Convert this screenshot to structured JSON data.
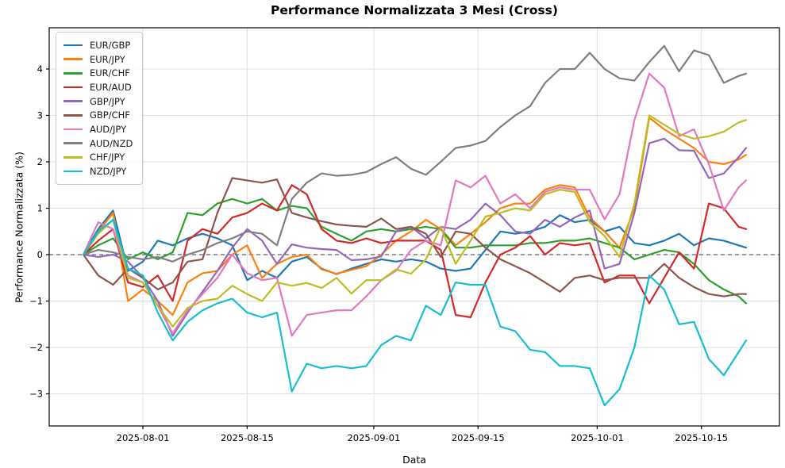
{
  "chart_data": {
    "type": "line",
    "title": "Performance Normalizzata 3 Mesi (Cross)",
    "xlabel": "Data",
    "ylabel": "Performance Normalizzata (%)",
    "grid": true,
    "zero_line_dashed": true,
    "legend_position": "upper left",
    "ylim": [
      -3.7,
      4.9
    ],
    "y_ticks": [
      -3,
      -2,
      -1,
      0,
      1,
      2,
      3,
      4
    ],
    "x_tick_labels": [
      "2025-08-01",
      "2025-08-15",
      "2025-09-01",
      "2025-09-15",
      "2025-10-01",
      "2025-10-15"
    ],
    "x": [
      "2025-07-24",
      "2025-07-26",
      "2025-07-28",
      "2025-07-30",
      "2025-08-01",
      "2025-08-03",
      "2025-08-05",
      "2025-08-07",
      "2025-08-09",
      "2025-08-11",
      "2025-08-13",
      "2025-08-15",
      "2025-08-17",
      "2025-08-19",
      "2025-08-21",
      "2025-08-23",
      "2025-08-25",
      "2025-08-27",
      "2025-08-29",
      "2025-08-31",
      "2025-09-02",
      "2025-09-04",
      "2025-09-06",
      "2025-09-08",
      "2025-09-10",
      "2025-09-12",
      "2025-09-14",
      "2025-09-16",
      "2025-09-18",
      "2025-09-20",
      "2025-09-22",
      "2025-09-24",
      "2025-09-26",
      "2025-09-28",
      "2025-09-30",
      "2025-10-02",
      "2025-10-04",
      "2025-10-06",
      "2025-10-08",
      "2025-10-10",
      "2025-10-12",
      "2025-10-14",
      "2025-10-16",
      "2025-10-18",
      "2025-10-20",
      "2025-10-21"
    ],
    "series": [
      {
        "name": "EUR/GBP",
        "color": "#1f77b4",
        "values": [
          0,
          0.55,
          0.95,
          -0.35,
          -0.15,
          0.3,
          0.2,
          0.35,
          0.45,
          0.35,
          0.2,
          -0.55,
          -0.35,
          -0.5,
          -0.15,
          -0.05,
          -0.3,
          -0.42,
          -0.3,
          -0.2,
          -0.1,
          -0.15,
          -0.1,
          -0.15,
          -0.3,
          -0.35,
          -0.3,
          0.1,
          0.5,
          0.45,
          0.5,
          0.6,
          0.85,
          0.7,
          0.75,
          0.5,
          0.6,
          0.25,
          0.2,
          0.3,
          0.45,
          0.2,
          0.35,
          0.3,
          0.2,
          0.15
        ]
      },
      {
        "name": "EUR/JPY",
        "color": "#ff7f0e",
        "values": [
          0,
          0.5,
          0.9,
          -1.0,
          -0.75,
          -1.0,
          -1.3,
          -0.6,
          -0.4,
          -0.35,
          0.0,
          0.2,
          -0.5,
          -0.2,
          -0.05,
          0.0,
          -0.32,
          -0.41,
          -0.33,
          -0.25,
          0.0,
          0.3,
          0.5,
          0.75,
          0.55,
          0.2,
          0.45,
          0.7,
          1.0,
          1.1,
          1.1,
          1.4,
          1.5,
          1.45,
          0.8,
          0.5,
          0.15,
          1.0,
          2.95,
          2.7,
          2.5,
          2.3,
          2.0,
          1.95,
          2.05,
          2.15
        ]
      },
      {
        "name": "EUR/CHF",
        "color": "#2ca02c",
        "values": [
          0,
          0.2,
          0.35,
          -0.1,
          0.05,
          -0.1,
          0.05,
          0.9,
          0.85,
          1.1,
          1.2,
          1.1,
          1.2,
          0.95,
          1.05,
          1.0,
          0.6,
          0.45,
          0.3,
          0.5,
          0.55,
          0.5,
          0.55,
          0.6,
          0.55,
          0.15,
          0.15,
          0.2,
          0.2,
          0.2,
          0.25,
          0.25,
          0.3,
          0.3,
          0.35,
          0.25,
          0.15,
          -0.1,
          0.0,
          0.1,
          0.05,
          -0.2,
          -0.55,
          -0.75,
          -0.9,
          -1.05
        ]
      },
      {
        "name": "EUR/AUD",
        "color": "#d62728",
        "values": [
          0,
          0.3,
          0.55,
          -0.6,
          -0.7,
          -0.45,
          -1.0,
          0.3,
          0.55,
          0.45,
          0.8,
          0.9,
          1.1,
          0.95,
          1.5,
          1.3,
          0.55,
          0.3,
          0.25,
          0.35,
          0.25,
          0.3,
          0.3,
          0.3,
          0.1,
          -1.3,
          -1.35,
          -0.6,
          0.0,
          0.15,
          0.4,
          0.0,
          0.25,
          0.2,
          0.25,
          -0.6,
          -0.45,
          -0.45,
          -1.05,
          -0.5,
          0.05,
          -0.3,
          1.1,
          1.0,
          0.6,
          0.55
        ]
      },
      {
        "name": "GBP/JPY",
        "color": "#9467bd",
        "values": [
          0,
          -0.05,
          0.0,
          -0.15,
          -0.5,
          -1.0,
          -1.75,
          -1.25,
          -0.8,
          -0.35,
          0.15,
          0.55,
          0.3,
          -0.2,
          0.22,
          0.15,
          0.12,
          0.1,
          -0.12,
          -0.1,
          -0.04,
          0.5,
          0.6,
          0.35,
          0.6,
          0.55,
          0.75,
          1.1,
          0.85,
          0.5,
          0.45,
          0.75,
          0.6,
          0.8,
          0.95,
          -0.3,
          -0.2,
          0.9,
          2.4,
          2.5,
          2.25,
          2.24,
          1.65,
          1.75,
          2.1,
          2.3
        ]
      },
      {
        "name": "GBP/CHF",
        "color": "#8c564b",
        "values": [
          0,
          -0.45,
          -0.65,
          -0.3,
          -0.5,
          -0.75,
          -0.6,
          -0.15,
          -0.1,
          0.9,
          1.65,
          1.6,
          1.55,
          1.62,
          0.9,
          0.8,
          0.72,
          0.65,
          0.62,
          0.6,
          0.78,
          0.55,
          0.6,
          0.45,
          -0.05,
          0.5,
          0.45,
          0.15,
          -0.1,
          -0.25,
          -0.4,
          -0.6,
          -0.8,
          -0.5,
          -0.45,
          -0.55,
          -0.5,
          -0.5,
          -0.5,
          -0.2,
          -0.5,
          -0.7,
          -0.85,
          -0.9,
          -0.85,
          -0.85
        ]
      },
      {
        "name": "AUD/JPY",
        "color": "#e377c2",
        "values": [
          0,
          0.7,
          0.55,
          -0.45,
          -0.6,
          -1.1,
          -1.7,
          -1.2,
          -0.85,
          -0.5,
          0.0,
          -0.4,
          -0.55,
          -0.5,
          -1.75,
          -1.3,
          -1.25,
          -1.2,
          -1.2,
          -0.9,
          -0.55,
          -0.35,
          0.1,
          0.3,
          0.2,
          1.6,
          1.45,
          1.7,
          1.1,
          1.3,
          1.0,
          1.35,
          1.45,
          1.4,
          1.4,
          0.76,
          1.3,
          2.9,
          3.9,
          3.6,
          2.55,
          2.7,
          1.95,
          0.95,
          1.45,
          1.6
        ]
      },
      {
        "name": "AUD/NZD",
        "color": "#7f7f7f",
        "values": [
          0,
          0.1,
          0.05,
          -0.05,
          -0.1,
          -0.05,
          -0.15,
          0.0,
          0.1,
          0.25,
          0.35,
          0.5,
          0.45,
          0.2,
          1.2,
          1.55,
          1.75,
          1.7,
          1.72,
          1.78,
          1.95,
          2.1,
          1.85,
          1.72,
          2.0,
          2.3,
          2.35,
          2.45,
          2.75,
          3.0,
          3.2,
          3.7,
          4.0,
          4.0,
          4.35,
          4.0,
          3.8,
          3.75,
          4.15,
          4.5,
          3.95,
          4.4,
          4.3,
          3.7,
          3.85,
          3.9
        ]
      },
      {
        "name": "CHF/JPY",
        "color": "#bcbd22",
        "values": [
          0,
          0.45,
          0.75,
          -0.5,
          -0.6,
          -1.1,
          -1.55,
          -1.15,
          -1.0,
          -0.95,
          -0.67,
          -0.85,
          -1.0,
          -0.6,
          -0.67,
          -0.61,
          -0.72,
          -0.5,
          -0.84,
          -0.55,
          -0.55,
          -0.32,
          -0.41,
          -0.1,
          0.6,
          -0.2,
          0.3,
          0.82,
          0.9,
          1.0,
          0.95,
          1.3,
          1.4,
          1.35,
          0.7,
          0.4,
          -0.05,
          1.1,
          3.0,
          2.8,
          2.6,
          2.5,
          2.55,
          2.65,
          2.85,
          2.9
        ]
      },
      {
        "name": "NZD/JPY",
        "color": "#17becf",
        "values": [
          0,
          0.5,
          0.75,
          -0.3,
          -0.45,
          -1.25,
          -1.85,
          -1.45,
          -1.2,
          -1.05,
          -0.95,
          -1.25,
          -1.35,
          -1.25,
          -2.95,
          -2.35,
          -2.45,
          -2.4,
          -2.45,
          -2.4,
          -1.95,
          -1.75,
          -1.85,
          -1.1,
          -1.3,
          -0.6,
          -0.65,
          -0.65,
          -1.55,
          -1.65,
          -2.05,
          -2.1,
          -2.4,
          -2.4,
          -2.45,
          -3.25,
          -2.9,
          -2.0,
          -0.45,
          -0.75,
          -1.5,
          -1.45,
          -2.25,
          -2.6,
          -2.1,
          -1.85
        ]
      }
    ]
  },
  "style": {
    "grid_color": "#dfdfdf",
    "frame_color": "#000000",
    "zero_line_color": "#3a3a3a",
    "tick_label_color": "#000000"
  }
}
